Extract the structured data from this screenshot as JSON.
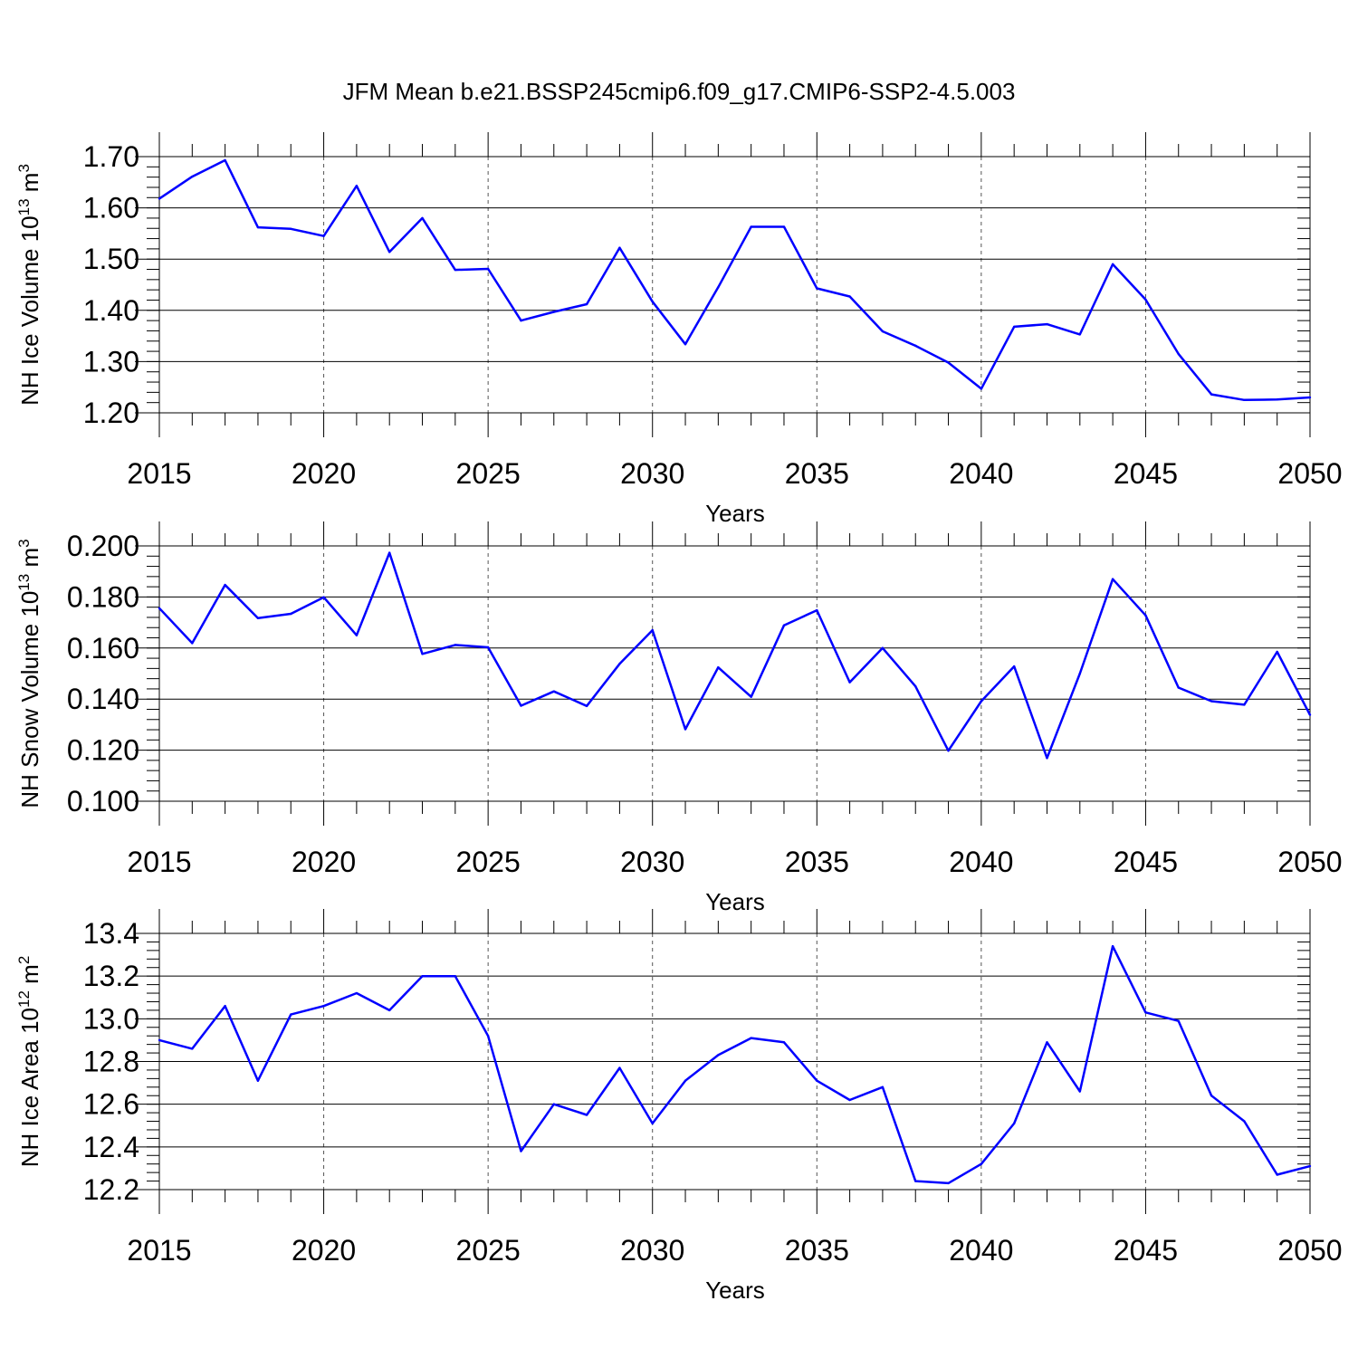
{
  "title": "JFM Mean b.e21.BSSP245cmip6.f09_g17.CMIP6-SSP2-4.5.003",
  "chart_data": [
    {
      "type": "line",
      "xlabel": "Years",
      "ylabel": {
        "base": "NH Ice Volume 10",
        "exp": "13",
        "unit": " m",
        "unit_exp": "3"
      },
      "xlim": [
        2015,
        2050
      ],
      "ylim": [
        1.2,
        1.7
      ],
      "x_ticks": [
        2015,
        2020,
        2025,
        2030,
        2035,
        2040,
        2045,
        2050
      ],
      "y_ticks": [
        "1.20",
        "1.30",
        "1.40",
        "1.50",
        "1.60",
        "1.70"
      ],
      "y_tick_values": [
        1.2,
        1.3,
        1.4,
        1.5,
        1.6,
        1.7
      ],
      "y_minor_step": 0.02,
      "x_gridlines": "dashed at major ticks",
      "line_color": "#0000ff",
      "x": [
        2015,
        2016,
        2017,
        2018,
        2019,
        2020,
        2021,
        2022,
        2023,
        2024,
        2025,
        2026,
        2027,
        2028,
        2029,
        2030,
        2031,
        2032,
        2033,
        2034,
        2035,
        2036,
        2037,
        2038,
        2039,
        2040,
        2041,
        2042,
        2043,
        2044,
        2045,
        2046,
        2047,
        2048,
        2049,
        2050
      ],
      "values": [
        1.618,
        1.661,
        1.693,
        1.562,
        1.559,
        1.545,
        1.643,
        1.514,
        1.58,
        1.479,
        1.481,
        1.38,
        1.397,
        1.412,
        1.522,
        1.417,
        1.334,
        1.445,
        1.563,
        1.563,
        1.443,
        1.427,
        1.359,
        1.331,
        1.298,
        1.247,
        1.368,
        1.373,
        1.353,
        1.49,
        1.421,
        1.315,
        1.236,
        1.225,
        1.226,
        1.23
      ]
    },
    {
      "type": "line",
      "xlabel": "Years",
      "ylabel": {
        "base": "NH Snow Volume 10",
        "exp": "13",
        "unit": " m",
        "unit_exp": "3"
      },
      "xlim": [
        2015,
        2050
      ],
      "ylim": [
        0.1,
        0.2
      ],
      "x_ticks": [
        2015,
        2020,
        2025,
        2030,
        2035,
        2040,
        2045,
        2050
      ],
      "y_ticks": [
        "0.100",
        "0.120",
        "0.140",
        "0.160",
        "0.180",
        "0.200"
      ],
      "y_tick_values": [
        0.1,
        0.12,
        0.14,
        0.16,
        0.18,
        0.2
      ],
      "y_minor_step": 0.004,
      "x_gridlines": "dashed at major ticks",
      "line_color": "#0000ff",
      "x": [
        2015,
        2016,
        2017,
        2018,
        2019,
        2020,
        2021,
        2022,
        2023,
        2024,
        2025,
        2026,
        2027,
        2028,
        2029,
        2030,
        2031,
        2032,
        2033,
        2034,
        2035,
        2036,
        2037,
        2038,
        2039,
        2040,
        2041,
        2042,
        2043,
        2044,
        2045,
        2046,
        2047,
        2048,
        2049,
        2050
      ],
      "values": [
        0.1756,
        0.1619,
        0.1847,
        0.1717,
        0.1734,
        0.1799,
        0.165,
        0.1973,
        0.1577,
        0.1612,
        0.1603,
        0.1374,
        0.143,
        0.1373,
        0.1538,
        0.167,
        0.1282,
        0.1524,
        0.1409,
        0.1689,
        0.1748,
        0.1466,
        0.16,
        0.145,
        0.1198,
        0.1392,
        0.1528,
        0.1169,
        0.15,
        0.187,
        0.1728,
        0.1445,
        0.1392,
        0.1378,
        0.1585,
        0.1338
      ]
    },
    {
      "type": "line",
      "xlabel": "Years",
      "ylabel": {
        "base": "NH Ice Area 10",
        "exp": "12",
        "unit": " m",
        "unit_exp": "2"
      },
      "xlim": [
        2015,
        2050
      ],
      "ylim": [
        12.2,
        13.4
      ],
      "x_ticks": [
        2015,
        2020,
        2025,
        2030,
        2035,
        2040,
        2045,
        2050
      ],
      "y_ticks": [
        "12.2",
        "12.4",
        "12.6",
        "12.8",
        "13.0",
        "13.2",
        "13.4"
      ],
      "y_tick_values": [
        12.2,
        12.4,
        12.6,
        12.8,
        13.0,
        13.2,
        13.4
      ],
      "y_minor_step": 0.04,
      "x_gridlines": "dashed at major ticks",
      "line_color": "#0000ff",
      "x": [
        2015,
        2016,
        2017,
        2018,
        2019,
        2020,
        2021,
        2022,
        2023,
        2024,
        2025,
        2026,
        2027,
        2028,
        2029,
        2030,
        2031,
        2032,
        2033,
        2034,
        2035,
        2036,
        2037,
        2038,
        2039,
        2040,
        2041,
        2042,
        2043,
        2044,
        2045,
        2046,
        2047,
        2048,
        2049,
        2050
      ],
      "values": [
        12.9,
        12.86,
        13.06,
        12.71,
        13.02,
        13.06,
        13.12,
        13.04,
        13.2,
        13.2,
        12.92,
        12.38,
        12.6,
        12.55,
        12.77,
        12.51,
        12.71,
        12.83,
        12.91,
        12.89,
        12.71,
        12.62,
        12.68,
        12.24,
        12.23,
        12.32,
        12.51,
        12.89,
        12.66,
        13.34,
        13.03,
        12.99,
        12.64,
        12.52,
        12.27,
        12.31
      ]
    }
  ]
}
